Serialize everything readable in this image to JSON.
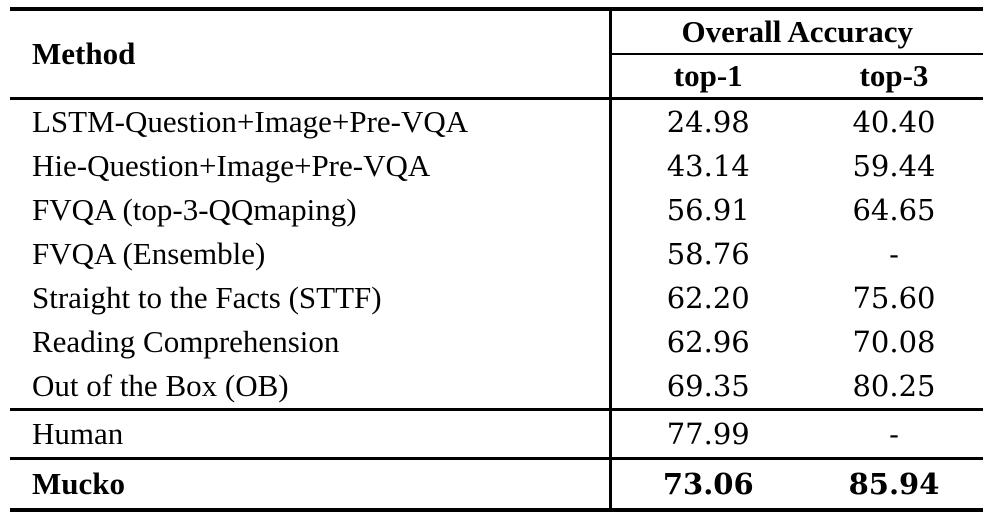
{
  "colors": {
    "text": "#000000",
    "background": "#ffffff",
    "rule": "#000000"
  },
  "table": {
    "header": {
      "method": "Method",
      "group": "Overall Accuracy",
      "col1": "top-1",
      "col2": "top-3"
    },
    "rows": [
      {
        "method": "LSTM-Question+Image+Pre-VQA",
        "top1": "24.98",
        "top3": "40.40"
      },
      {
        "method": "Hie-Question+Image+Pre-VQA",
        "top1": "43.14",
        "top3": "59.44"
      },
      {
        "method": "FVQA (top-3-QQmaping)",
        "top1": "56.91",
        "top3": "64.65"
      },
      {
        "method": "FVQA (Ensemble)",
        "top1": "58.76",
        "top3": "-"
      },
      {
        "method": "Straight to the Facts (STTF)",
        "top1": "62.20",
        "top3": "75.60"
      },
      {
        "method": "Reading Comprehension",
        "top1": "62.96",
        "top3": "70.08"
      },
      {
        "method": "Out of the Box (OB)",
        "top1": "69.35",
        "top3": "80.25"
      }
    ],
    "human_row": {
      "method": "Human",
      "top1": "77.99",
      "top3": "-"
    },
    "mucko_row": {
      "method": "Mucko",
      "top1": "73.06",
      "top3": "85.94"
    }
  },
  "chart_data": {
    "type": "table",
    "title": "Overall Accuracy",
    "columns": [
      "Method",
      "top-1",
      "top-3"
    ],
    "rows": [
      [
        "LSTM-Question+Image+Pre-VQA",
        24.98,
        40.4
      ],
      [
        "Hie-Question+Image+Pre-VQA",
        43.14,
        59.44
      ],
      [
        "FVQA (top-3-QQmaping)",
        56.91,
        64.65
      ],
      [
        "FVQA (Ensemble)",
        58.76,
        null
      ],
      [
        "Straight to the Facts (STTF)",
        62.2,
        75.6
      ],
      [
        "Reading Comprehension",
        62.96,
        70.08
      ],
      [
        "Out of the Box (OB)",
        69.35,
        80.25
      ],
      [
        "Human",
        77.99,
        null
      ],
      [
        "Mucko",
        73.06,
        85.94
      ]
    ]
  }
}
